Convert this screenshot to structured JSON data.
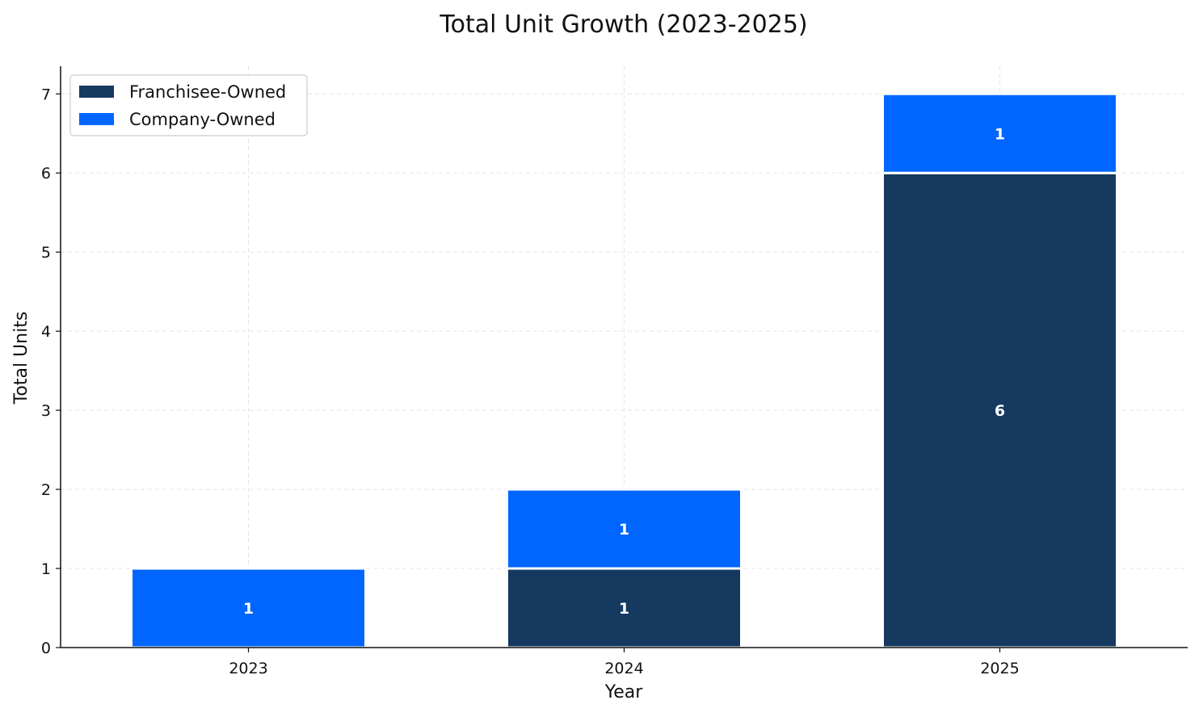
{
  "chart_data": {
    "type": "bar",
    "stacked": true,
    "title": "Total Unit Growth (2023-2025)",
    "xlabel": "Year",
    "ylabel": "Total Units",
    "categories": [
      "2023",
      "2024",
      "2025"
    ],
    "series": [
      {
        "name": "Franchisee-Owned",
        "values": [
          0,
          1,
          6
        ],
        "color": "#15395f"
      },
      {
        "name": "Company-Owned",
        "values": [
          1,
          1,
          1
        ],
        "color": "#0066ff"
      }
    ],
    "ylim": [
      0,
      7.35
    ],
    "yticks": [
      0,
      1,
      2,
      3,
      4,
      5,
      6,
      7
    ],
    "grid": true,
    "legend_position": "top-left",
    "show_data_labels": true
  }
}
